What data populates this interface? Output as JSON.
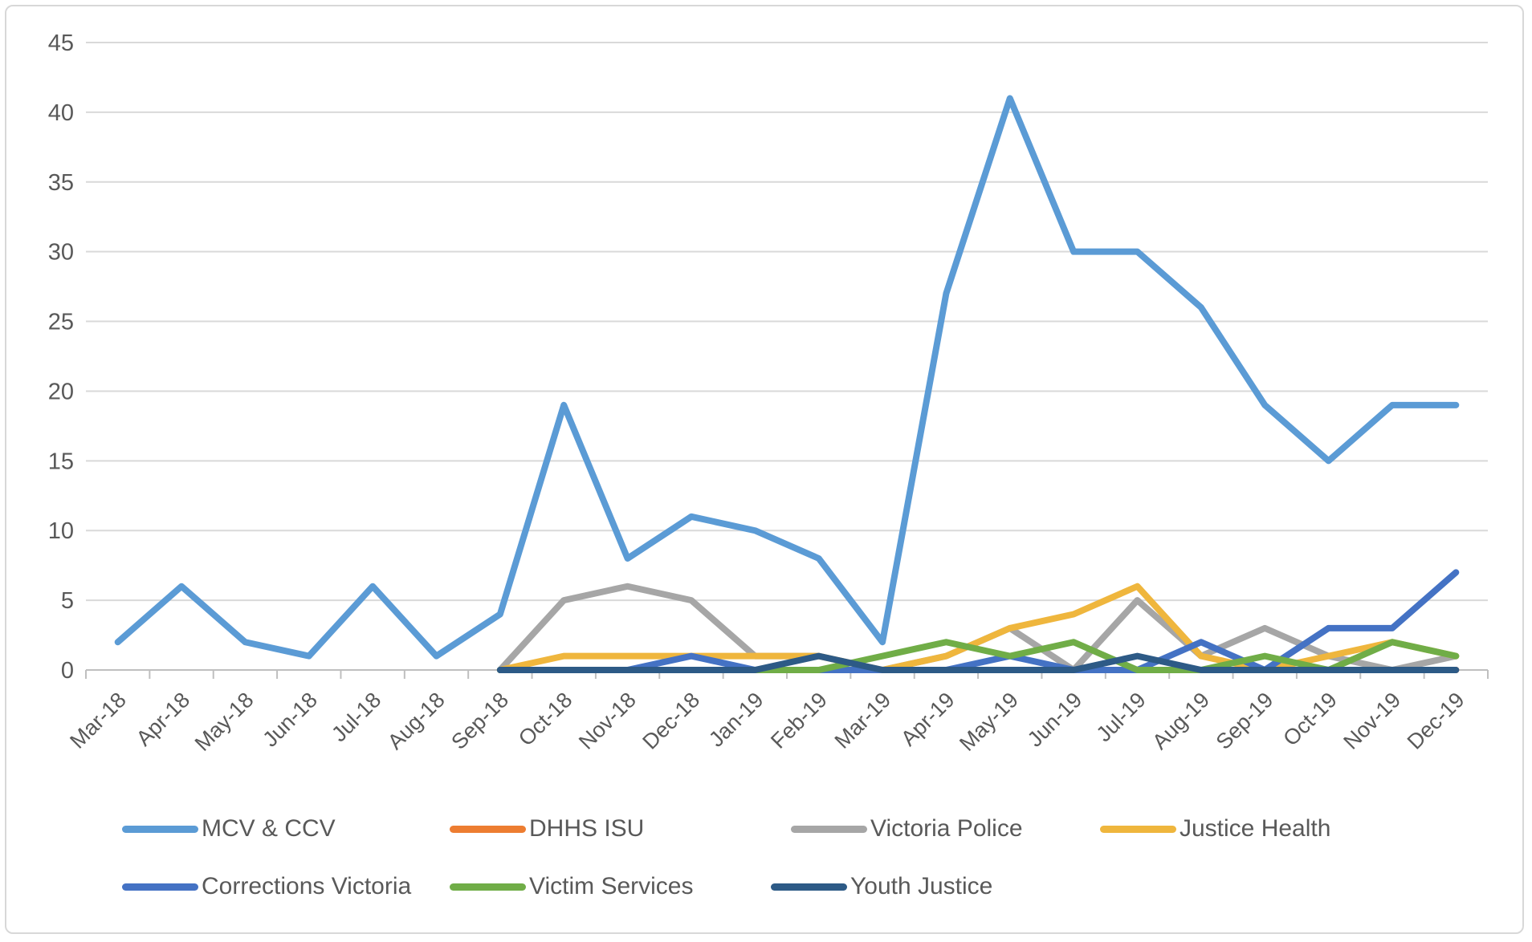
{
  "chart_data": {
    "type": "line",
    "title": "",
    "xlabel": "",
    "ylabel": "",
    "ylim": [
      0,
      45
    ],
    "ytick_step": 5,
    "grid": true,
    "legend_position": "bottom",
    "x_categories": [
      "Mar-18",
      "Apr-18",
      "May-18",
      "Jun-18",
      "Jul-18",
      "Aug-18",
      "Sep-18",
      "Oct-18",
      "Nov-18",
      "Dec-18",
      "Jan-19",
      "Feb-19",
      "Mar-19",
      "Apr-19",
      "May-19",
      "Jun-19",
      "Jul-19",
      "Aug-19",
      "Sep-19",
      "Oct-19",
      "Nov-19",
      "Dec-19"
    ],
    "y_tick_labels": [
      "0",
      "5",
      "10",
      "15",
      "20",
      "25",
      "30",
      "35",
      "40",
      "45"
    ],
    "series": [
      {
        "name": "MCV & CCV",
        "color": "#5B9BD5",
        "values": [
          2,
          6,
          2,
          1,
          6,
          1,
          4,
          19,
          8,
          11,
          10,
          8,
          2,
          27,
          41,
          30,
          30,
          26,
          19,
          15,
          19,
          19
        ]
      },
      {
        "name": "DHHS ISU",
        "color": "#ED7D31",
        "values": [
          null,
          null,
          null,
          null,
          null,
          null,
          0,
          0,
          0,
          0,
          0,
          0,
          0,
          0,
          0,
          0,
          0,
          0,
          0,
          0,
          0,
          0
        ]
      },
      {
        "name": "Victoria Police",
        "color": "#A6A6A6",
        "values": [
          null,
          null,
          null,
          null,
          null,
          null,
          0,
          5,
          6,
          5,
          1,
          1,
          0,
          1,
          3,
          0,
          5,
          1,
          3,
          1,
          0,
          1
        ]
      },
      {
        "name": "Justice Health",
        "color": "#EFB63D",
        "values": [
          null,
          null,
          null,
          null,
          null,
          null,
          0,
          1,
          1,
          1,
          1,
          1,
          0,
          1,
          3,
          4,
          6,
          1,
          0,
          1,
          2,
          1
        ]
      },
      {
        "name": "Corrections Victoria",
        "color": "#4472C4",
        "values": [
          null,
          null,
          null,
          null,
          null,
          null,
          0,
          0,
          0,
          1,
          0,
          0,
          0,
          0,
          1,
          0,
          0,
          2,
          0,
          3,
          3,
          7
        ]
      },
      {
        "name": "Victim Services",
        "color": "#70AD47",
        "values": [
          null,
          null,
          null,
          null,
          null,
          null,
          0,
          0,
          0,
          0,
          0,
          0,
          1,
          2,
          1,
          2,
          0,
          0,
          1,
          0,
          2,
          1
        ]
      },
      {
        "name": "Youth Justice",
        "color": "#2D5A86",
        "values": [
          null,
          null,
          null,
          null,
          null,
          null,
          0,
          0,
          0,
          0,
          0,
          1,
          0,
          0,
          0,
          0,
          1,
          0,
          0,
          0,
          0,
          0
        ]
      }
    ],
    "colors": {
      "grid": "#D9D9D9",
      "axis": "#BFBFBF",
      "tick": "#BFBFBF",
      "text": "#595959",
      "frame": "#D8D8D8"
    }
  },
  "legend": {
    "rows": [
      [
        "MCV & CCV",
        "DHHS ISU",
        "Victoria Police",
        "Justice Health"
      ],
      [
        "Corrections Victoria",
        "Victim Services",
        "Youth Justice"
      ]
    ]
  }
}
